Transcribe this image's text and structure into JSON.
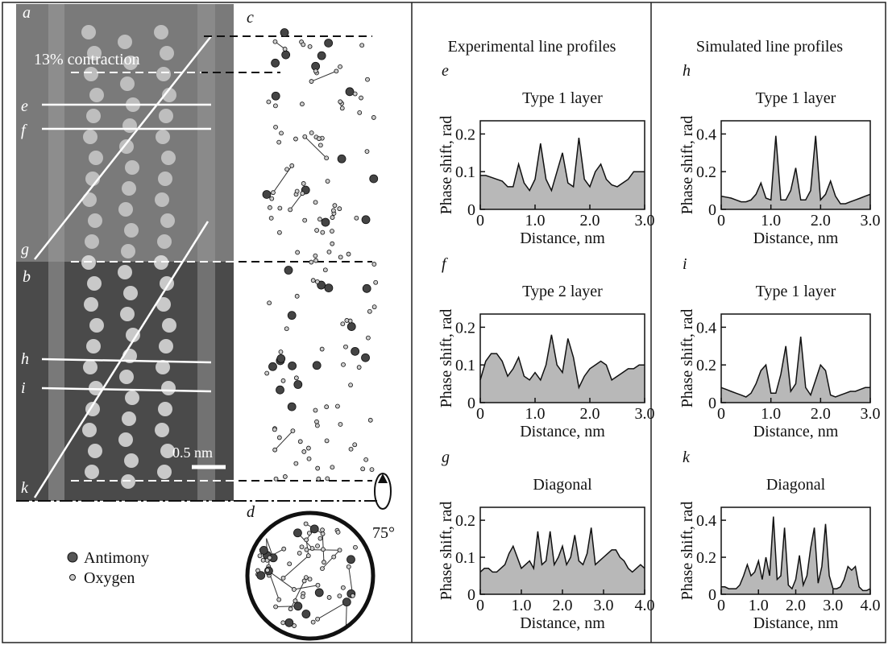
{
  "figure": {
    "column_headers": [
      "Experimental line profiles",
      "Simulated line profiles"
    ],
    "panel_a": "a",
    "panel_b": "b",
    "panel_c": "c",
    "panel_d": "d",
    "contraction": "13% contraction",
    "line_labels": [
      "e",
      "f",
      "g",
      "h",
      "i",
      "k"
    ],
    "scale_bar": "0.5 nm",
    "rotation": "75°",
    "legend": [
      "Antimony",
      "Oxygen"
    ]
  },
  "chart_data": [
    {
      "type": "area",
      "panel": "e",
      "title": "Type 1 layer",
      "xlabel": "Distance, nm",
      "ylabel": "Phase shift, rad",
      "color": "#b8b8b8",
      "x": [
        0,
        0.1,
        0.2,
        0.3,
        0.4,
        0.5,
        0.6,
        0.7,
        0.8,
        0.9,
        1,
        1.1,
        1.2,
        1.3,
        1.4,
        1.5,
        1.6,
        1.7,
        1.8,
        1.9,
        2,
        2.1,
        2.2,
        2.3,
        2.4,
        2.5,
        2.6,
        2.7,
        2.8,
        2.9,
        3
      ],
      "values": [
        0.09,
        0.09,
        0.085,
        0.08,
        0.075,
        0.06,
        0.06,
        0.12,
        0.07,
        0.05,
        0.08,
        0.175,
        0.08,
        0.05,
        0.1,
        0.15,
        0.07,
        0.06,
        0.19,
        0.08,
        0.06,
        0.1,
        0.12,
        0.08,
        0.065,
        0.06,
        0.07,
        0.08,
        0.1,
        0.1,
        0.1
      ],
      "xlim": [
        0,
        3
      ],
      "ylim": [
        0,
        0.235
      ],
      "xticks": [
        0,
        {
          "value": 1,
          "label": "1.0"
        },
        {
          "value": 2,
          "label": "2.0"
        },
        {
          "value": 3,
          "label": "3.0"
        }
      ],
      "yticks": [
        0,
        0.1,
        0.2
      ]
    },
    {
      "type": "area",
      "panel": "f",
      "title": "Type 2 layer",
      "xlabel": "Distance, nm",
      "ylabel": "Phase shift, rad",
      "color": "#b8b8b8",
      "x": [
        0,
        0.1,
        0.2,
        0.3,
        0.4,
        0.5,
        0.6,
        0.7,
        0.8,
        0.9,
        1,
        1.1,
        1.2,
        1.3,
        1.4,
        1.5,
        1.6,
        1.7,
        1.8,
        1.9,
        2,
        2.1,
        2.2,
        2.3,
        2.4,
        2.5,
        2.6,
        2.7,
        2.8,
        2.9,
        3
      ],
      "values": [
        0.06,
        0.11,
        0.13,
        0.13,
        0.11,
        0.07,
        0.09,
        0.12,
        0.07,
        0.06,
        0.08,
        0.06,
        0.1,
        0.18,
        0.1,
        0.08,
        0.17,
        0.12,
        0.04,
        0.07,
        0.09,
        0.1,
        0.11,
        0.1,
        0.06,
        0.07,
        0.08,
        0.09,
        0.09,
        0.1,
        0.1
      ],
      "xlim": [
        0,
        3
      ],
      "ylim": [
        0,
        0.235
      ],
      "xticks": [
        0,
        {
          "value": 1,
          "label": "1.0"
        },
        {
          "value": 2,
          "label": "2.0"
        },
        {
          "value": 3,
          "label": "3.0"
        }
      ],
      "yticks": [
        0,
        0.1,
        0.2
      ]
    },
    {
      "type": "area",
      "panel": "g",
      "title": "Diagonal",
      "xlabel": "Distance, nm",
      "ylabel": "Phase shift, rad",
      "color": "#b8b8b8",
      "x": [
        0,
        0.1,
        0.2,
        0.3,
        0.4,
        0.5,
        0.6,
        0.7,
        0.8,
        0.9,
        1,
        1.1,
        1.2,
        1.3,
        1.4,
        1.5,
        1.6,
        1.7,
        1.8,
        1.9,
        2,
        2.1,
        2.2,
        2.3,
        2.4,
        2.5,
        2.6,
        2.7,
        2.8,
        2.9,
        3,
        3.1,
        3.2,
        3.3,
        3.4,
        3.5,
        3.6,
        3.7,
        3.8,
        3.9,
        4
      ],
      "values": [
        0.06,
        0.07,
        0.07,
        0.06,
        0.06,
        0.07,
        0.08,
        0.11,
        0.13,
        0.1,
        0.07,
        0.08,
        0.09,
        0.07,
        0.17,
        0.08,
        0.09,
        0.17,
        0.08,
        0.1,
        0.13,
        0.08,
        0.1,
        0.16,
        0.09,
        0.08,
        0.11,
        0.18,
        0.08,
        0.09,
        0.1,
        0.11,
        0.12,
        0.12,
        0.1,
        0.09,
        0.07,
        0.06,
        0.07,
        0.08,
        0.07
      ],
      "xlim": [
        0,
        4
      ],
      "ylim": [
        0,
        0.235
      ],
      "xticks": [
        0,
        {
          "value": 1,
          "label": "1.0"
        },
        {
          "value": 2,
          "label": "2.0"
        },
        {
          "value": 3,
          "label": "3.0"
        },
        {
          "value": 4,
          "label": "4.0"
        }
      ],
      "yticks": [
        0,
        0.1,
        0.2
      ]
    },
    {
      "type": "area",
      "panel": "h",
      "title": "Type 1 layer",
      "xlabel": "Distance, nm",
      "ylabel": "Phase shift, rad",
      "color": "#b8b8b8",
      "x": [
        0,
        0.1,
        0.2,
        0.3,
        0.4,
        0.5,
        0.6,
        0.7,
        0.8,
        0.9,
        1,
        1.1,
        1.2,
        1.3,
        1.4,
        1.5,
        1.6,
        1.7,
        1.8,
        1.9,
        2,
        2.1,
        2.2,
        2.3,
        2.4,
        2.5,
        2.6,
        2.7,
        2.8,
        2.9,
        3
      ],
      "values": [
        0.07,
        0.065,
        0.06,
        0.05,
        0.04,
        0.04,
        0.05,
        0.08,
        0.14,
        0.06,
        0.05,
        0.39,
        0.05,
        0.05,
        0.1,
        0.22,
        0.05,
        0.05,
        0.1,
        0.39,
        0.05,
        0.08,
        0.15,
        0.07,
        0.03,
        0.03,
        0.04,
        0.05,
        0.06,
        0.07,
        0.08
      ],
      "xlim": [
        0,
        3
      ],
      "ylim": [
        0,
        0.47
      ],
      "xticks": [
        0,
        {
          "value": 1,
          "label": "1.0"
        },
        {
          "value": 2,
          "label": "2.0"
        },
        {
          "value": 3,
          "label": "3.0"
        }
      ],
      "yticks": [
        0,
        0.2,
        0.4
      ]
    },
    {
      "type": "area",
      "panel": "i",
      "title": "Type 1 layer",
      "xlabel": "Distance, nm",
      "ylabel": "Phase shift, rad",
      "color": "#b8b8b8",
      "x": [
        0,
        0.1,
        0.2,
        0.3,
        0.4,
        0.5,
        0.6,
        0.7,
        0.8,
        0.9,
        1,
        1.1,
        1.2,
        1.3,
        1.4,
        1.5,
        1.6,
        1.7,
        1.8,
        1.9,
        2,
        2.1,
        2.2,
        2.3,
        2.4,
        2.5,
        2.6,
        2.7,
        2.8,
        2.9,
        3
      ],
      "values": [
        0.08,
        0.07,
        0.06,
        0.05,
        0.04,
        0.03,
        0.05,
        0.1,
        0.17,
        0.2,
        0.05,
        0.05,
        0.15,
        0.3,
        0.06,
        0.1,
        0.35,
        0.08,
        0.04,
        0.12,
        0.2,
        0.17,
        0.04,
        0.03,
        0.04,
        0.05,
        0.06,
        0.06,
        0.07,
        0.08,
        0.08
      ],
      "xlim": [
        0,
        3
      ],
      "ylim": [
        0,
        0.47
      ],
      "xticks": [
        0,
        {
          "value": 1,
          "label": "1.0"
        },
        {
          "value": 2,
          "label": "2.0"
        },
        {
          "value": 3,
          "label": "3.0"
        }
      ],
      "yticks": [
        0,
        0.2,
        0.4
      ]
    },
    {
      "type": "area",
      "panel": "k",
      "title": "Diagonal",
      "xlabel": "Distance, nm",
      "ylabel": "Phase shift, rad",
      "color": "#b8b8b8",
      "x": [
        0,
        0.1,
        0.2,
        0.3,
        0.4,
        0.5,
        0.6,
        0.7,
        0.8,
        0.9,
        1,
        1.1,
        1.2,
        1.3,
        1.4,
        1.5,
        1.6,
        1.7,
        1.8,
        1.9,
        2,
        2.1,
        2.2,
        2.3,
        2.4,
        2.5,
        2.6,
        2.7,
        2.8,
        2.9,
        3,
        3.1,
        3.2,
        3.3,
        3.4,
        3.5,
        3.6,
        3.7,
        3.8,
        3.9,
        4
      ],
      "values": [
        0.04,
        0.04,
        0.03,
        0.03,
        0.03,
        0.05,
        0.1,
        0.16,
        0.1,
        0.12,
        0.18,
        0.08,
        0.2,
        0.1,
        0.42,
        0.08,
        0.1,
        0.36,
        0.05,
        0.03,
        0.08,
        0.21,
        0.05,
        0.1,
        0.25,
        0.36,
        0.06,
        0.15,
        0.38,
        0.1,
        0.03,
        0.03,
        0.04,
        0.08,
        0.15,
        0.13,
        0.15,
        0.04,
        0.02,
        0.02,
        0.03
      ],
      "xlim": [
        0,
        4
      ],
      "ylim": [
        0,
        0.47
      ],
      "xticks": [
        0,
        {
          "value": 1,
          "label": "1.0"
        },
        {
          "value": 2,
          "label": "2.0"
        },
        {
          "value": 3,
          "label": "3.0"
        },
        {
          "value": 4,
          "label": "4.0"
        }
      ],
      "yticks": [
        0,
        0.2,
        0.4
      ]
    }
  ]
}
